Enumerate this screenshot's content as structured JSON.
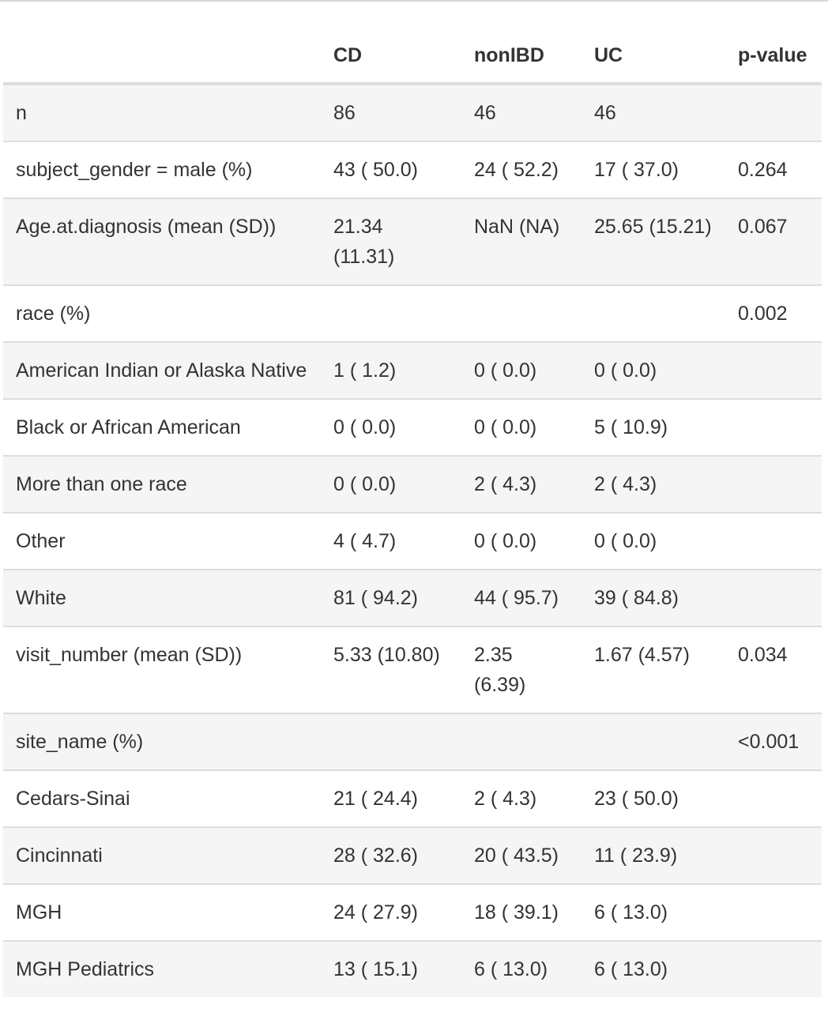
{
  "table": {
    "headers": [
      "",
      "CD",
      "nonIBD",
      "UC",
      "p-​value"
    ],
    "rows": [
      [
        "n",
        "86",
        "46",
        "46",
        ""
      ],
      [
        "subject_gender = male (%)",
        "43 ( 50.0)",
        "24 ( 52.2)",
        "17 ( 37.0)",
        "0.264"
      ],
      [
        "Age.at.diagnosis (mean (SD))",
        "21.34 (11.31)",
        "NaN (NA)",
        "25.65 (15.21)",
        "0.067"
      ],
      [
        "race (%)",
        "",
        "",
        "",
        "0.002"
      ],
      [
        "American Indian or Alaska Native",
        "1 ( 1.2)",
        "0 ( 0.0)",
        "0 ( 0.0)",
        ""
      ],
      [
        "Black or African American",
        "0 ( 0.0)",
        "0 ( 0.0)",
        "5 ( 10.9)",
        ""
      ],
      [
        "More than one race",
        "0 ( 0.0)",
        "2 ( 4.3)",
        "2 ( 4.3)",
        ""
      ],
      [
        "Other",
        "4 ( 4.7)",
        "0 ( 0.0)",
        "0 ( 0.0)",
        ""
      ],
      [
        "White",
        "81 ( 94.2)",
        "44 ( 95.7)",
        "39 ( 84.8)",
        ""
      ],
      [
        "visit_number (mean (SD))",
        "5.33 (10.80)",
        "2.35 (6.39)",
        "1.67 (4.57)",
        "0.034"
      ],
      [
        "site_name (%)",
        "",
        "",
        "",
        "<0.001"
      ],
      [
        "Cedars-Sinai",
        "21 ( 24.4)",
        "2 ( 4.3)",
        "23 ( 50.0)",
        ""
      ],
      [
        "Cincinnati",
        "28 ( 32.6)",
        "20 ( 43.5)",
        "11 ( 23.9)",
        ""
      ],
      [
        "MGH",
        "24 ( 27.9)",
        "18 ( 39.1)",
        "6 ( 13.0)",
        ""
      ],
      [
        "MGH Pediatrics",
        "13 ( 15.1)",
        "6 ( 13.0)",
        "6 ( 13.0)",
        ""
      ]
    ]
  }
}
